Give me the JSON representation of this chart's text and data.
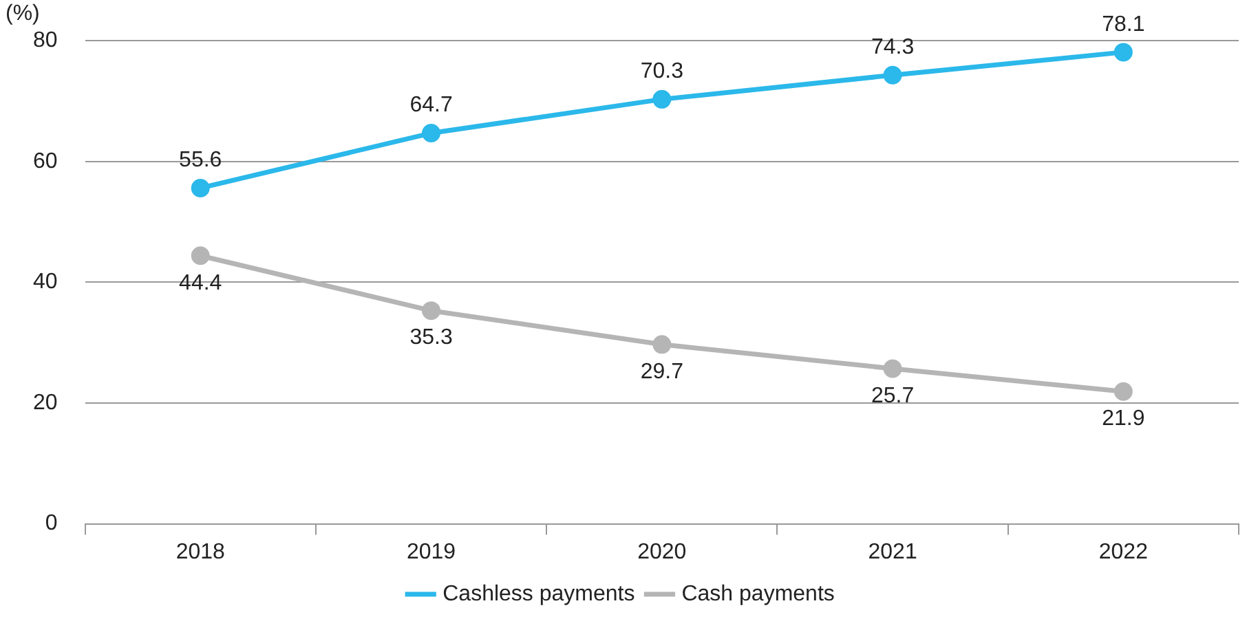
{
  "chart_data": {
    "type": "line",
    "ylabel": "(%)",
    "categories": [
      "2018",
      "2019",
      "2020",
      "2021",
      "2022"
    ],
    "series": [
      {
        "name": "Cashless payments",
        "color": "#2bb8ea",
        "values": [
          55.6,
          64.7,
          70.3,
          74.3,
          78.1
        ]
      },
      {
        "name": "Cash payments",
        "color": "#b5b5b5",
        "values": [
          44.4,
          35.3,
          29.7,
          25.7,
          21.9
        ]
      }
    ],
    "ylim": [
      0,
      80
    ],
    "yticks": [
      0,
      20,
      40,
      60,
      80
    ],
    "grid": "y",
    "legend": "bottom",
    "marker": "circle",
    "line_style": "solid",
    "data_labels": true
  }
}
